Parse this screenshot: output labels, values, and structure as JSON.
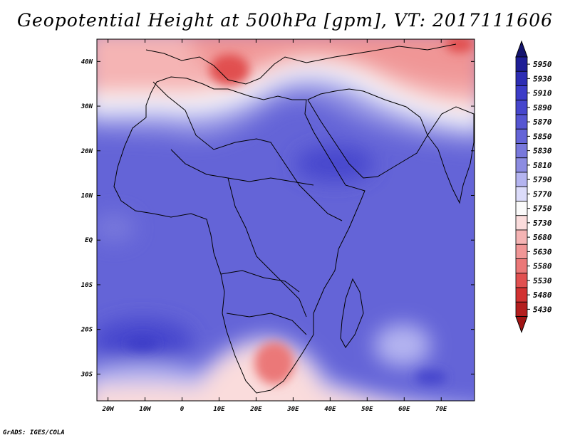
{
  "title": "Geopotential Height at 500hPa [gpm], VT: 2017111606",
  "footer": "GrADS: IGES/COLA",
  "map": {
    "lon_range": [
      -23,
      79
    ],
    "lat_range": [
      -36,
      45
    ],
    "lon_ticks": [
      {
        "value": -20,
        "label": "20W"
      },
      {
        "value": -10,
        "label": "10W"
      },
      {
        "value": 0,
        "label": "0"
      },
      {
        "value": 10,
        "label": "10E"
      },
      {
        "value": 20,
        "label": "20E"
      },
      {
        "value": 30,
        "label": "30E"
      },
      {
        "value": 40,
        "label": "40E"
      },
      {
        "value": 50,
        "label": "50E"
      },
      {
        "value": 60,
        "label": "60E"
      },
      {
        "value": 70,
        "label": "70E"
      }
    ],
    "lat_ticks": [
      {
        "value": 40,
        "label": "40N"
      },
      {
        "value": 30,
        "label": "30N"
      },
      {
        "value": 20,
        "label": "20N"
      },
      {
        "value": 10,
        "label": "10N"
      },
      {
        "value": 0,
        "label": "EQ"
      },
      {
        "value": -10,
        "label": "10S"
      },
      {
        "value": -20,
        "label": "20S"
      },
      {
        "value": -30,
        "label": "30S"
      }
    ]
  },
  "colorbar": {
    "levels": [
      "5950",
      "5930",
      "5910",
      "5890",
      "5870",
      "5850",
      "5830",
      "5810",
      "5790",
      "5770",
      "5750",
      "5730",
      "5680",
      "5630",
      "5580",
      "5530",
      "5480",
      "5430"
    ],
    "colors": [
      "#1e1e96",
      "#2d2db4",
      "#3c3cc8",
      "#4646cd",
      "#5555d2",
      "#6464d7",
      "#7878dc",
      "#8c8ce1",
      "#b4b4f0",
      "#dcdcfa",
      "#fafafa",
      "#fadcdc",
      "#f5b4b4",
      "#f09696",
      "#eb7878",
      "#e15050",
      "#d23232",
      "#b41e1e"
    ],
    "top_arrow_color": "#14146e",
    "bottom_arrow_color": "#a01414"
  }
}
